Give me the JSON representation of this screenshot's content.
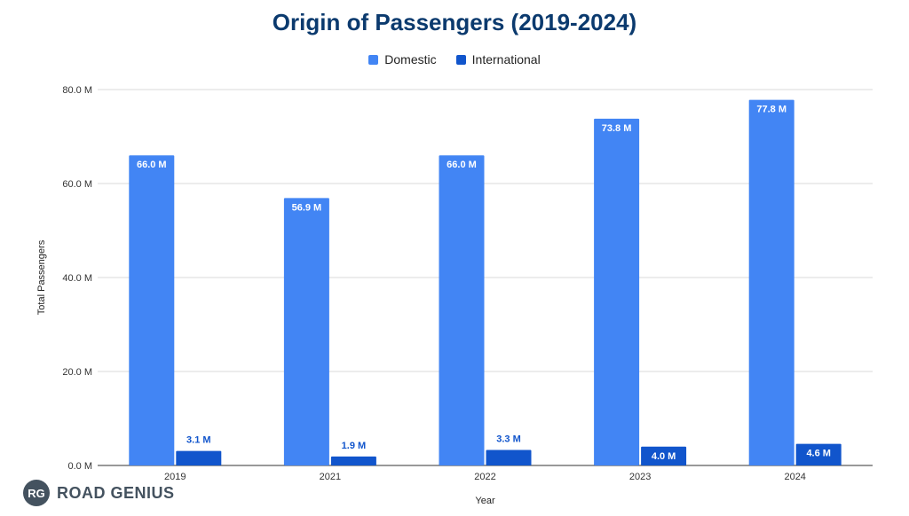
{
  "chart_data": {
    "type": "bar",
    "title": "Origin of Passengers (2019-2024)",
    "xlabel": "Year",
    "ylabel": "Total Passengers",
    "categories": [
      "2019",
      "2021",
      "2022",
      "2023",
      "2024"
    ],
    "series": [
      {
        "name": "Domestic",
        "color": "#4285f4",
        "values": [
          66.0,
          56.9,
          66.0,
          73.8,
          77.8
        ],
        "labels": [
          "66.0 M",
          "56.9 M",
          "66.0 M",
          "73.8 M",
          "77.8 M"
        ]
      },
      {
        "name": "International",
        "color": "#1155cc",
        "values": [
          3.1,
          1.9,
          3.3,
          4.0,
          4.6
        ],
        "labels": [
          "3.1 M",
          "1.9 M",
          "3.3 M",
          "4.0 M",
          "4.6 M"
        ]
      }
    ],
    "ylim": [
      0,
      80
    ],
    "yticks": [
      0,
      20,
      40,
      60,
      80
    ],
    "ytick_labels": [
      "0.0 M",
      "20.0 M",
      "40.0 M",
      "60.0 M",
      "80.0 M"
    ],
    "grid": true,
    "legend_position": "top-center"
  },
  "branding": {
    "logo_mark": "RG",
    "logo_text": "ROAD GENIUS"
  }
}
